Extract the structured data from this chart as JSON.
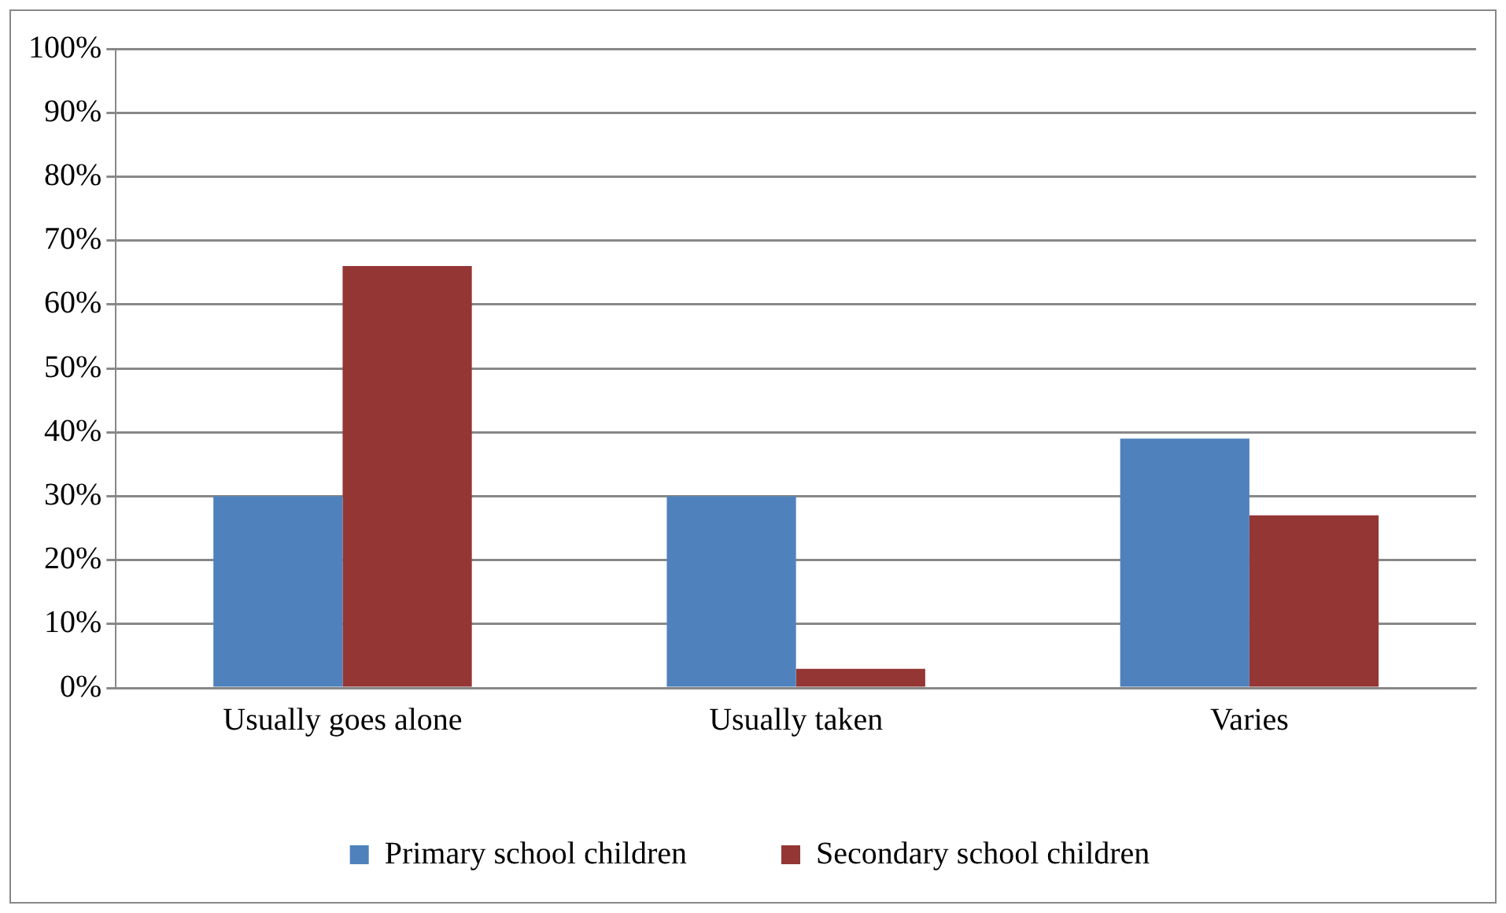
{
  "chart_data": {
    "type": "bar",
    "categories": [
      "Usually goes alone",
      "Usually taken",
      "Varies"
    ],
    "series": [
      {
        "name": "Primary school children",
        "color": "#4f81bd",
        "values": [
          30,
          30,
          39
        ]
      },
      {
        "name": "Secondary school children",
        "color": "#943634",
        "values": [
          66,
          3,
          27
        ]
      }
    ],
    "ylim": [
      0,
      100
    ],
    "yticks": [
      {
        "value": 0,
        "label": "0%"
      },
      {
        "value": 10,
        "label": "10%"
      },
      {
        "value": 20,
        "label": "20%"
      },
      {
        "value": 30,
        "label": "30%"
      },
      {
        "value": 40,
        "label": "40%"
      },
      {
        "value": 50,
        "label": "50%"
      },
      {
        "value": 60,
        "label": "60%"
      },
      {
        "value": 70,
        "label": "70%"
      },
      {
        "value": 80,
        "label": "80%"
      },
      {
        "value": 90,
        "label": "90%"
      },
      {
        "value": 100,
        "label": "100%"
      }
    ],
    "grid": "y",
    "legend": "bottom"
  }
}
